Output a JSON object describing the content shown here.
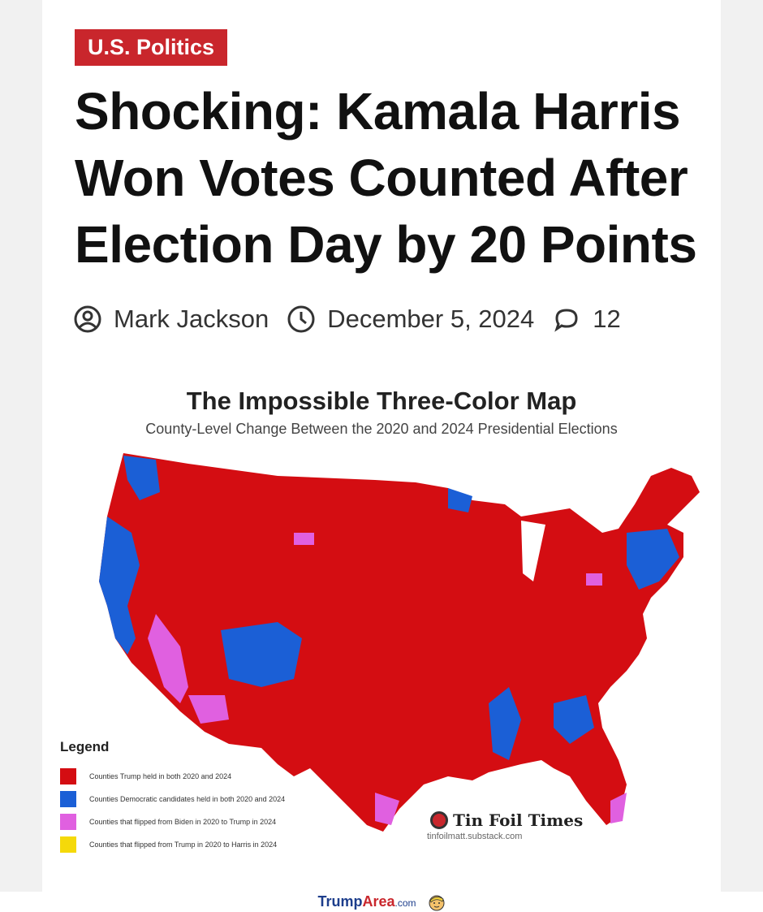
{
  "article": {
    "category": "U.S. Politics",
    "headline": "Shocking: Kamala Harris Won Votes Counted After Election Day by 20 Points",
    "author": "Mark Jackson",
    "date": "December 5, 2024",
    "comments": "12"
  },
  "map": {
    "title": "The Impossible Three-Color Map",
    "subtitle": "County-Level Change Between the 2020 and 2024 Presidential Elections",
    "legend_title": "Legend",
    "legend": [
      {
        "label": "Counties Trump held in both 2020 and 2024",
        "color": "#d40d12"
      },
      {
        "label": "Counties Democratic candidates held in both 2020 and 2024",
        "color": "#1b5fd6"
      },
      {
        "label": "Counties that flipped from Biden in 2020 to Trump in 2024",
        "color": "#e060e0"
      },
      {
        "label": "Counties that flipped from Trump in 2020 to Harris in 2024",
        "color": "#f5d90a"
      }
    ],
    "brand_name": "Tin Foil Times",
    "brand_url": "tinfoilmatt.substack.com"
  },
  "footer": {
    "trump": "Trump",
    "area": "Area",
    "com": ".com"
  },
  "colors": {
    "accent": "#c9262c",
    "red": "#d40d12",
    "blue": "#1b5fd6",
    "magenta": "#e060e0",
    "yellow": "#f5d90a"
  }
}
